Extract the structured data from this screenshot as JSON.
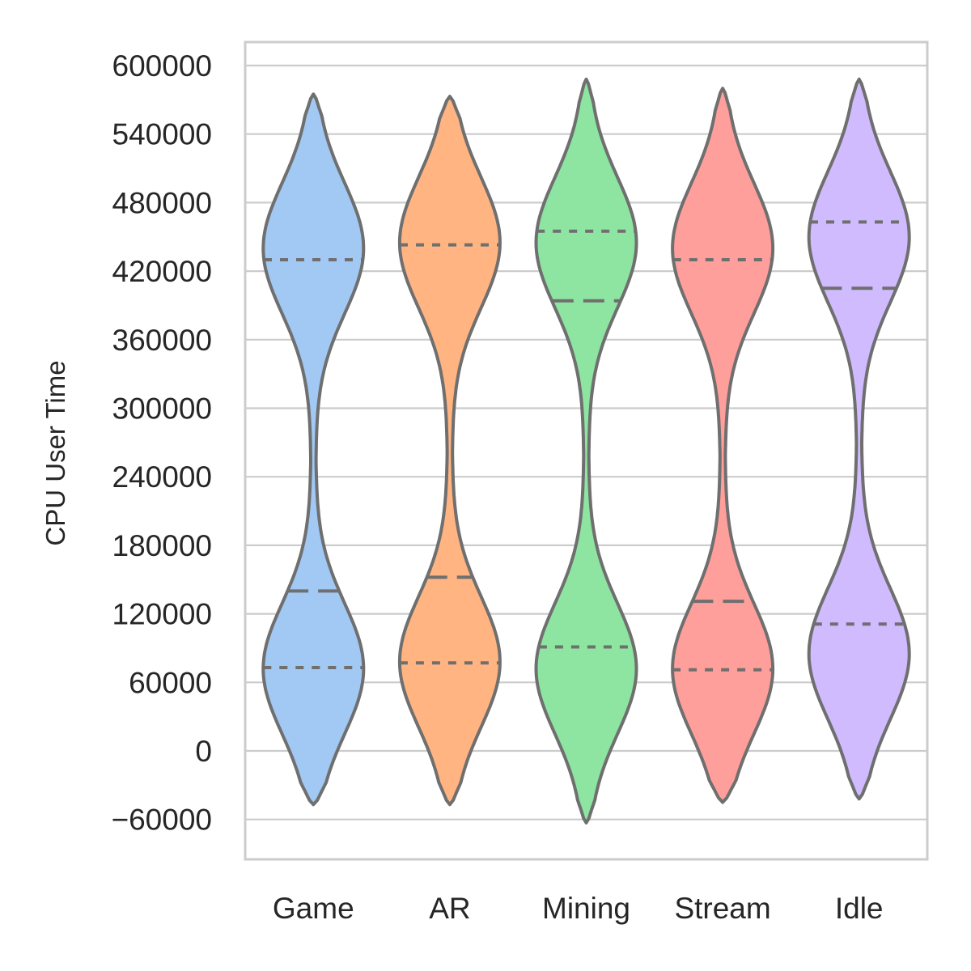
{
  "chart_data": {
    "type": "violin",
    "title": "",
    "xlabel": "",
    "ylabel": "CPU User Time",
    "ylim": [
      -80000,
      620000
    ],
    "yticks": [
      -60000,
      0,
      60000,
      120000,
      180000,
      240000,
      300000,
      360000,
      420000,
      480000,
      540000,
      600000
    ],
    "ytick_labels": [
      "−60000",
      "0",
      "60000",
      "120000",
      "180000",
      "240000",
      "300000",
      "360000",
      "420000",
      "480000",
      "540000",
      "600000"
    ],
    "grid": true,
    "inner": "quartile",
    "categories": [
      "Game",
      "AR",
      "Mining",
      "Stream",
      "Idle"
    ],
    "colors": [
      "#a1c9f4",
      "#ffb482",
      "#8de5a1",
      "#ff9f9b",
      "#d0bbff"
    ],
    "edge_color": "#6f6f6f",
    "violins": [
      {
        "category": "Game",
        "min": -47000,
        "max": 575000,
        "low_mode": 72000,
        "high_mode": 440000,
        "q1": 73000,
        "median": 140000,
        "q3": 430000
      },
      {
        "category": "AR",
        "min": -47000,
        "max": 573000,
        "low_mode": 78000,
        "high_mode": 445000,
        "q1": 77000,
        "median": 152000,
        "q3": 443000
      },
      {
        "category": "Mining",
        "min": -63000,
        "max": 588000,
        "low_mode": 72000,
        "high_mode": 445000,
        "q1": 91000,
        "median": 394000,
        "q3": 455000
      },
      {
        "category": "Stream",
        "min": -45000,
        "max": 580000,
        "low_mode": 72000,
        "high_mode": 440000,
        "q1": 71000,
        "median": 131000,
        "q3": 430000
      },
      {
        "category": "Idle",
        "min": -42000,
        "max": 588000,
        "low_mode": 85000,
        "high_mode": 450000,
        "q1": 111000,
        "median": 405000,
        "q3": 463000
      }
    ]
  }
}
